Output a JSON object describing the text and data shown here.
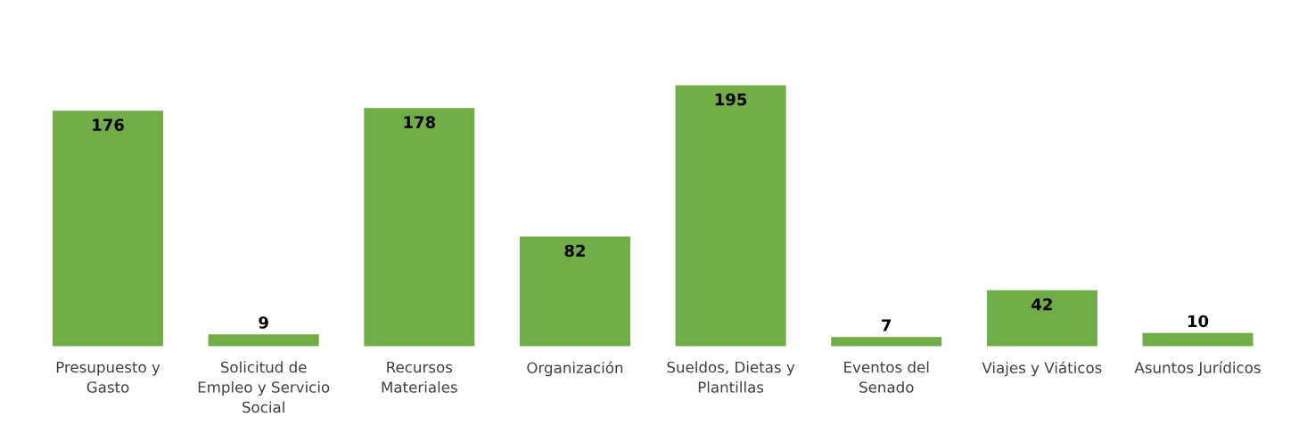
{
  "chart_data": {
    "type": "bar",
    "categories": [
      "Presupuesto y Gasto",
      "Solicitud de Empleo y Servicio Social",
      "Recursos Materiales",
      "Organización",
      "Sueldos, Dietas y Plantillas",
      "Eventos del Senado",
      "Viajes y Viáticos",
      "Asuntos Jurídicos"
    ],
    "values": [
      176,
      9,
      178,
      82,
      195,
      7,
      42,
      10
    ],
    "color": "#70ad47",
    "data_labels": true,
    "grid": false,
    "legend": false
  }
}
